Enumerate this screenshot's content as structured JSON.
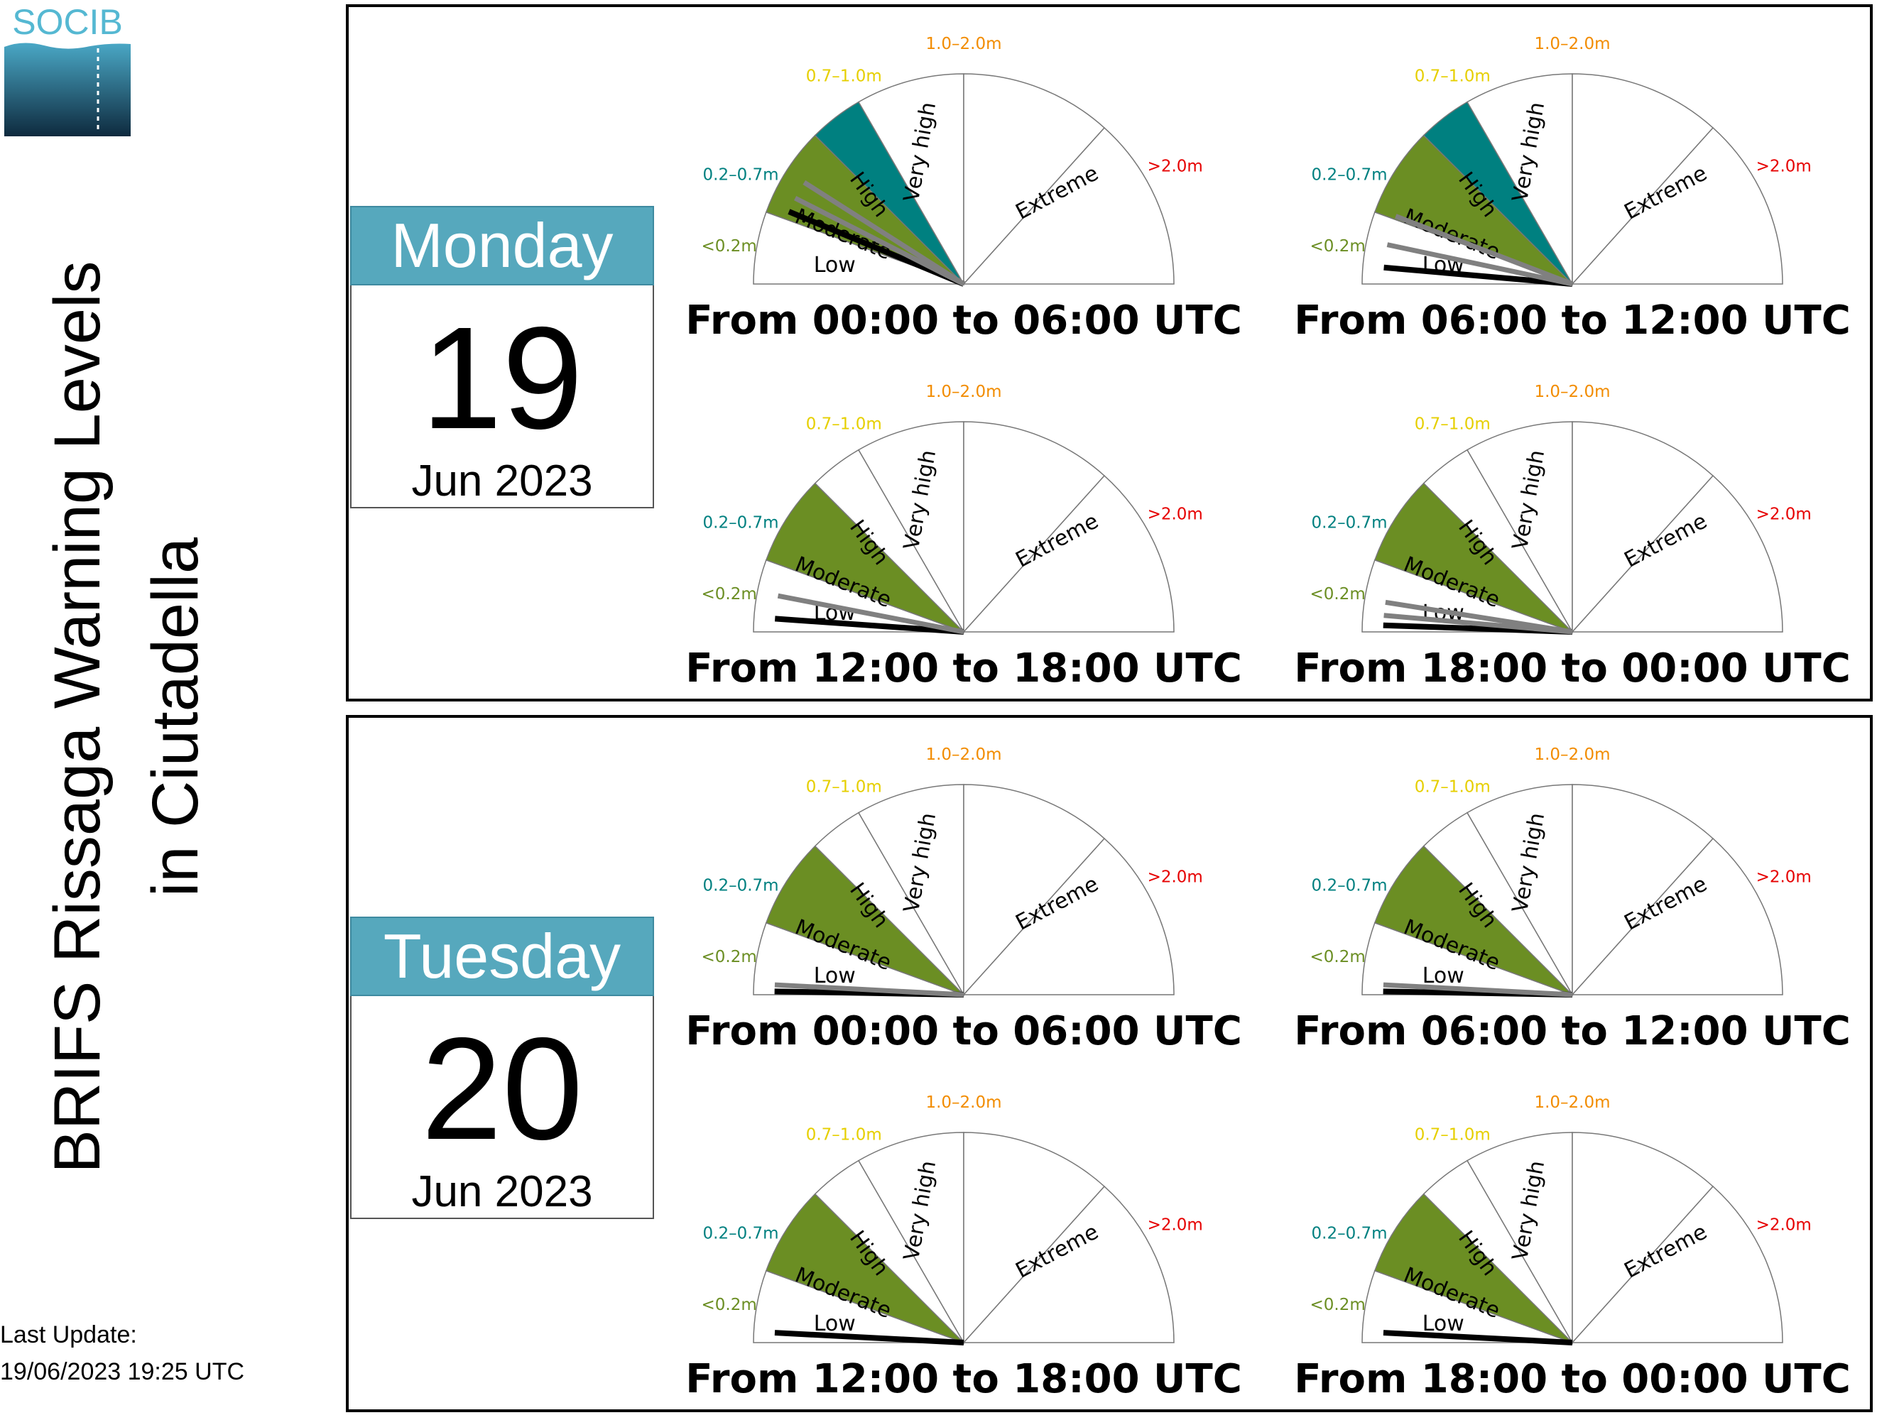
{
  "page": {
    "title_line1": "BRIFS Rissaga Warning Levels",
    "title_line2": "in Ciutadella",
    "last_update_label": "Last Update:",
    "last_update_value": "19/06/2023 19:25 UTC"
  },
  "logo": {
    "text": "SOCIB",
    "colors": {
      "text": "#55b8d2",
      "top": "#4aa8c6",
      "bottom": "#0e2a3e"
    }
  },
  "colors": {
    "level_low": "#6b8e23",
    "level_moderate": "#008080",
    "level_high": "#ffffff",
    "label_low": "#6b8e23",
    "label_moderate": "#008080",
    "label_high": "#e6cf00",
    "label_very_high": "#f28c00",
    "label_extreme": "#e60000",
    "needle_main": "#000000",
    "needle_secondary": "#808080",
    "calendar_header": "#56a8bd"
  },
  "gauge_labels": {
    "categories": [
      "Low",
      "Moderate",
      "High",
      "Very high",
      "Extreme"
    ],
    "thresholds": [
      "<0.2m",
      "0.2–0.7m",
      "0.7–1.0m",
      "1.0–2.0m",
      ">2.0m"
    ]
  },
  "days": [
    {
      "weekday": "Monday",
      "day": "19",
      "month_year": "Jun 2023"
    },
    {
      "weekday": "Tuesday",
      "day": "20",
      "month_year": "Jun 2023"
    }
  ],
  "chart_data": [
    {
      "type": "gauge",
      "day": "Monday 19 Jun 2023",
      "title": "From 00:00 to 06:00 UTC",
      "highlighted_level": "Moderate",
      "needles_m": [
        0.25,
        0.34,
        0.45
      ]
    },
    {
      "type": "gauge",
      "day": "Monday 19 Jun 2023",
      "title": "From 06:00 to 12:00 UTC",
      "highlighted_level": "Moderate",
      "needles_m": [
        0.05,
        0.12,
        0.22
      ]
    },
    {
      "type": "gauge",
      "day": "Monday 19 Jun 2023",
      "title": "From 12:00 to 18:00 UTC",
      "highlighted_level": "Low",
      "needles_m": [
        0.04,
        0.11
      ]
    },
    {
      "type": "gauge",
      "day": "Monday 19 Jun 2023",
      "title": "From 18:00 to 00:00 UTC",
      "highlighted_level": "Low",
      "needles_m": [
        0.02,
        0.05,
        0.09
      ]
    },
    {
      "type": "gauge",
      "day": "Tuesday 20 Jun 2023",
      "title": "From 00:00 to 06:00 UTC",
      "highlighted_level": "Low",
      "needles_m": [
        0.01,
        0.03
      ]
    },
    {
      "type": "gauge",
      "day": "Tuesday 20 Jun 2023",
      "title": "From 06:00 to 12:00 UTC",
      "highlighted_level": "Low",
      "needles_m": [
        0.01,
        0.03
      ]
    },
    {
      "type": "gauge",
      "day": "Tuesday 20 Jun 2023",
      "title": "From 12:00 to 18:00 UTC",
      "highlighted_level": "Low",
      "needles_m": [
        0.03
      ]
    },
    {
      "type": "gauge",
      "day": "Tuesday 20 Jun 2023",
      "title": "From 18:00 to 00:00 UTC",
      "highlighted_level": "Low",
      "needles_m": [
        0.03
      ]
    }
  ]
}
